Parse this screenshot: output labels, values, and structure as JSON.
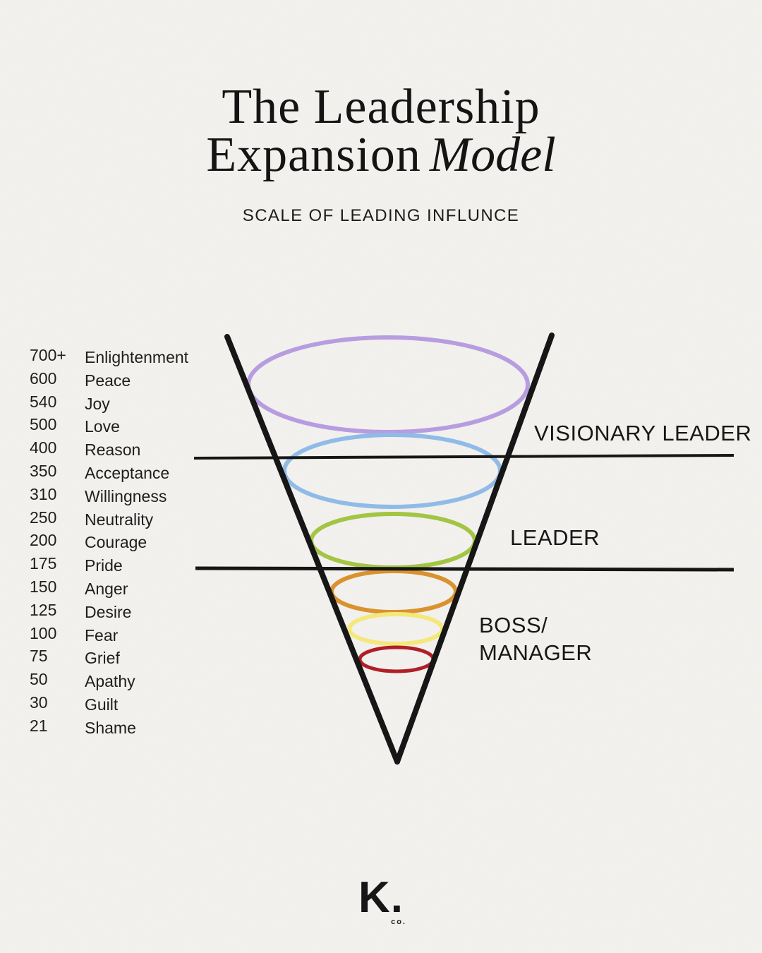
{
  "title": {
    "line1": "The Leadership",
    "line2": "Expansion",
    "line2_accent": "Model"
  },
  "subtitle": "SCALE OF LEADING INFLUNCE",
  "scale": {
    "items": [
      {
        "value": "700+",
        "label": "Enlightenment"
      },
      {
        "value": "600",
        "label": "Peace"
      },
      {
        "value": "540",
        "label": "Joy"
      },
      {
        "value": "500",
        "label": "Love"
      },
      {
        "value": "400",
        "label": "Reason"
      },
      {
        "value": "350",
        "label": "Acceptance"
      },
      {
        "value": "310",
        "label": "Willingness"
      },
      {
        "value": "250",
        "label": "Neutrality"
      },
      {
        "value": "200",
        "label": "Courage"
      },
      {
        "value": "175",
        "label": "Pride"
      },
      {
        "value": "150",
        "label": "Anger"
      },
      {
        "value": "125",
        "label": "Desire"
      },
      {
        "value": "100",
        "label": "Fear"
      },
      {
        "value": "75",
        "label": "Grief"
      },
      {
        "value": "50",
        "label": "Apathy"
      },
      {
        "value": "30",
        "label": "Guilt"
      },
      {
        "value": "21",
        "label": "Shame"
      }
    ]
  },
  "funnel": {
    "zones": [
      {
        "label": "VISIONARY LEADER"
      },
      {
        "label": "LEADER"
      },
      {
        "line1": "BOSS/",
        "line2": "MANAGER"
      }
    ],
    "rings": [
      {
        "name": "ring-1-top",
        "color": "#b79de0"
      },
      {
        "name": "ring-2",
        "color": "#91bbe7"
      },
      {
        "name": "ring-3",
        "color": "#a3c544"
      },
      {
        "name": "ring-4",
        "color": "#d9922d"
      },
      {
        "name": "ring-5",
        "color": "#f4e87d"
      },
      {
        "name": "ring-6-bottom",
        "color": "#b01f27"
      }
    ],
    "line_color": "#161616"
  },
  "logo": {
    "mark": "K.",
    "sub": "co."
  },
  "background_color": "#f3f2ef"
}
